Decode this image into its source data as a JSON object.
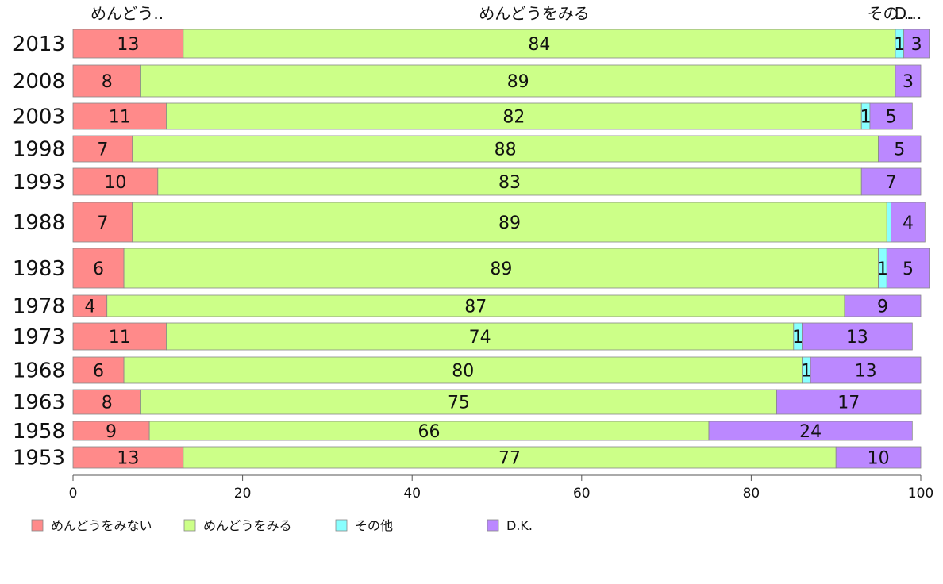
{
  "chart_data": {
    "type": "bar",
    "orientation": "horizontal",
    "stacked": true,
    "categories": [
      "2013",
      "2008",
      "2003",
      "1998",
      "1993",
      "1988",
      "1983",
      "1978",
      "1973",
      "1968",
      "1963",
      "1958",
      "1953"
    ],
    "series": [
      {
        "name": "めんどうをみない",
        "color": "#ff8a8a",
        "values": [
          13,
          8,
          11,
          7,
          10,
          7,
          6,
          4,
          11,
          6,
          8,
          9,
          13
        ]
      },
      {
        "name": "めんどうをみる",
        "color": "#ccff88",
        "values": [
          84,
          89,
          82,
          88,
          83,
          89,
          89,
          87,
          74,
          80,
          75,
          66,
          77
        ]
      },
      {
        "name": "その他",
        "color": "#88ffff",
        "values": [
          1,
          0,
          1,
          0,
          0,
          0.5,
          1,
          0,
          1,
          1,
          0,
          0,
          0
        ]
      },
      {
        "name": "D.K.",
        "color": "#bb88ff",
        "values": [
          3,
          3,
          5,
          5,
          7,
          4,
          5,
          9,
          13,
          13,
          17,
          24,
          10
        ]
      }
    ],
    "xlim": [
      0,
      100
    ],
    "xticks": [
      0,
      20,
      40,
      60,
      80,
      100
    ],
    "top_labels": [
      "めんどう..",
      "めんどうをみる",
      "その...",
      "D..."
    ],
    "legend_position": "bottom-left",
    "grid": false
  }
}
